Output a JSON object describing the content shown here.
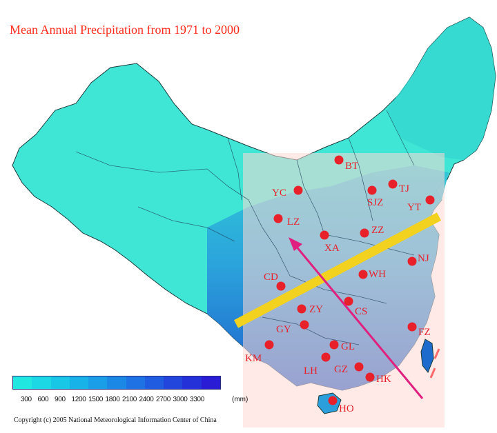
{
  "title": "Mean Annual Precipitation from 1971 to 2000",
  "legend": {
    "ticks": [
      "300",
      "600",
      "900",
      "1200",
      "1500",
      "1800",
      "2100",
      "2400",
      "2700",
      "3000",
      "3300"
    ],
    "unit": "(mm)",
    "colors": [
      "#20e8e0",
      "#1cd8e4",
      "#18c6e6",
      "#16b2e8",
      "#1a9ee8",
      "#1c88e6",
      "#1e72e4",
      "#205ce0",
      "#2246dc",
      "#2430d8",
      "#2a1cd4"
    ]
  },
  "copyright": "Copyright (c) 2005  National Meteorological Information Center of China",
  "colors": {
    "land_dry": "#3ee8d8",
    "land_mid": "#2ccfd8",
    "land_wet": "#2a8fd8",
    "land_very_wet": "#1d5fcf",
    "highlight": "#ffd8d4",
    "city_dot": "#e8202a",
    "divider_line": "#f2d21e",
    "arrow": "#e0207e"
  },
  "cities": [
    "BT",
    "YC",
    "TJ",
    "SJZ",
    "YT",
    "LZ",
    "ZZ",
    "XA",
    "NJ",
    "CD",
    "WH",
    "ZY",
    "CS",
    "GY",
    "FZ",
    "GL",
    "KM",
    "LH",
    "GZ",
    "HK",
    "HO"
  ]
}
